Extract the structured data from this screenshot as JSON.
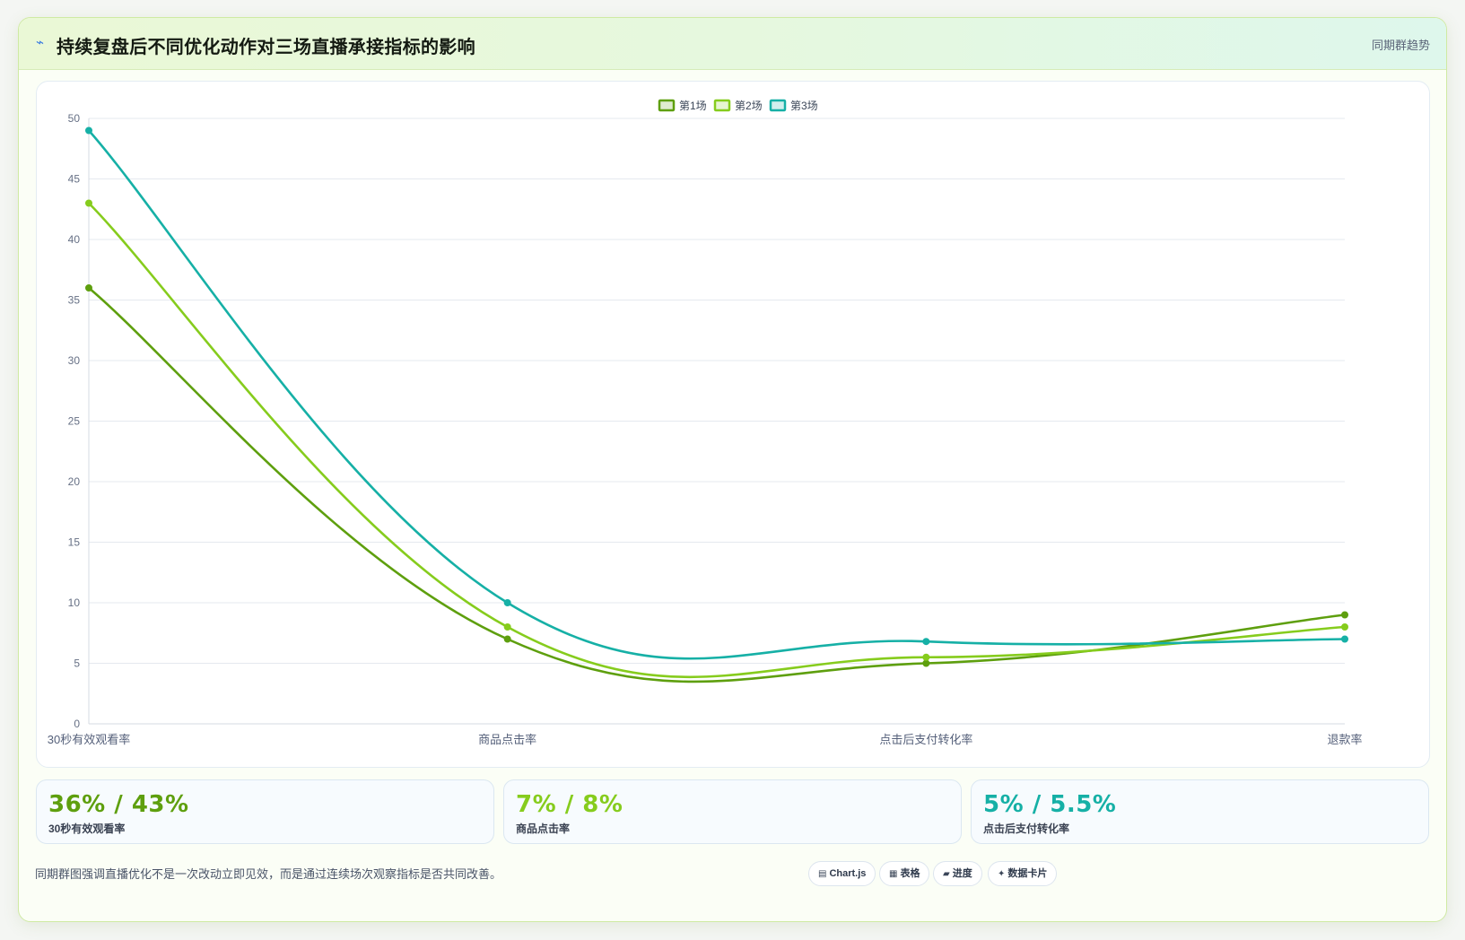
{
  "header": {
    "title": "持续复盘后不同优化动作对三场直播承接指标的影响",
    "badge": "同期群趋势",
    "icon": "lightning-icon"
  },
  "colors": {
    "series1": "#5e9f0e",
    "series2": "#86cc1d",
    "series3": "#16b0a6",
    "grid": "#e5e9ef",
    "axis_text": "#667085"
  },
  "chart_data": {
    "type": "line",
    "categories": [
      "30秒有效观看率",
      "商品点击率",
      "点击后支付转化率",
      "退款率"
    ],
    "series": [
      {
        "name": "第1场",
        "values": [
          36,
          7,
          5,
          9
        ]
      },
      {
        "name": "第2场",
        "values": [
          43,
          8,
          5.5,
          8
        ]
      },
      {
        "name": "第3场",
        "values": [
          49,
          10,
          6.8,
          7
        ]
      }
    ],
    "ylim": [
      0,
      50
    ],
    "yticks": [
      0,
      5,
      10,
      15,
      20,
      25,
      30,
      35,
      40,
      45,
      50
    ],
    "grid": true,
    "legend": "top-center",
    "smooth": true
  },
  "stats": [
    {
      "value": "36% / 43%",
      "label": "30秒有效观看率"
    },
    {
      "value": "7% / 8%",
      "label": "商品点击率"
    },
    {
      "value": "5% / 5.5%",
      "label": "点击后支付转化率"
    }
  ],
  "footnote": "同期群图强调直播优化不是一次改动立即见效，而是通过连续场次观察指标是否共同改善。",
  "tags": [
    {
      "icon": "chart-icon",
      "glyph": "▤",
      "label": "Chart.js"
    },
    {
      "icon": "table-icon",
      "glyph": "▦",
      "label": "表格"
    },
    {
      "icon": "progress-icon",
      "glyph": "▰",
      "label": "进度"
    },
    {
      "icon": "sparkle-icon",
      "glyph": "✦",
      "label": "数据卡片"
    }
  ]
}
